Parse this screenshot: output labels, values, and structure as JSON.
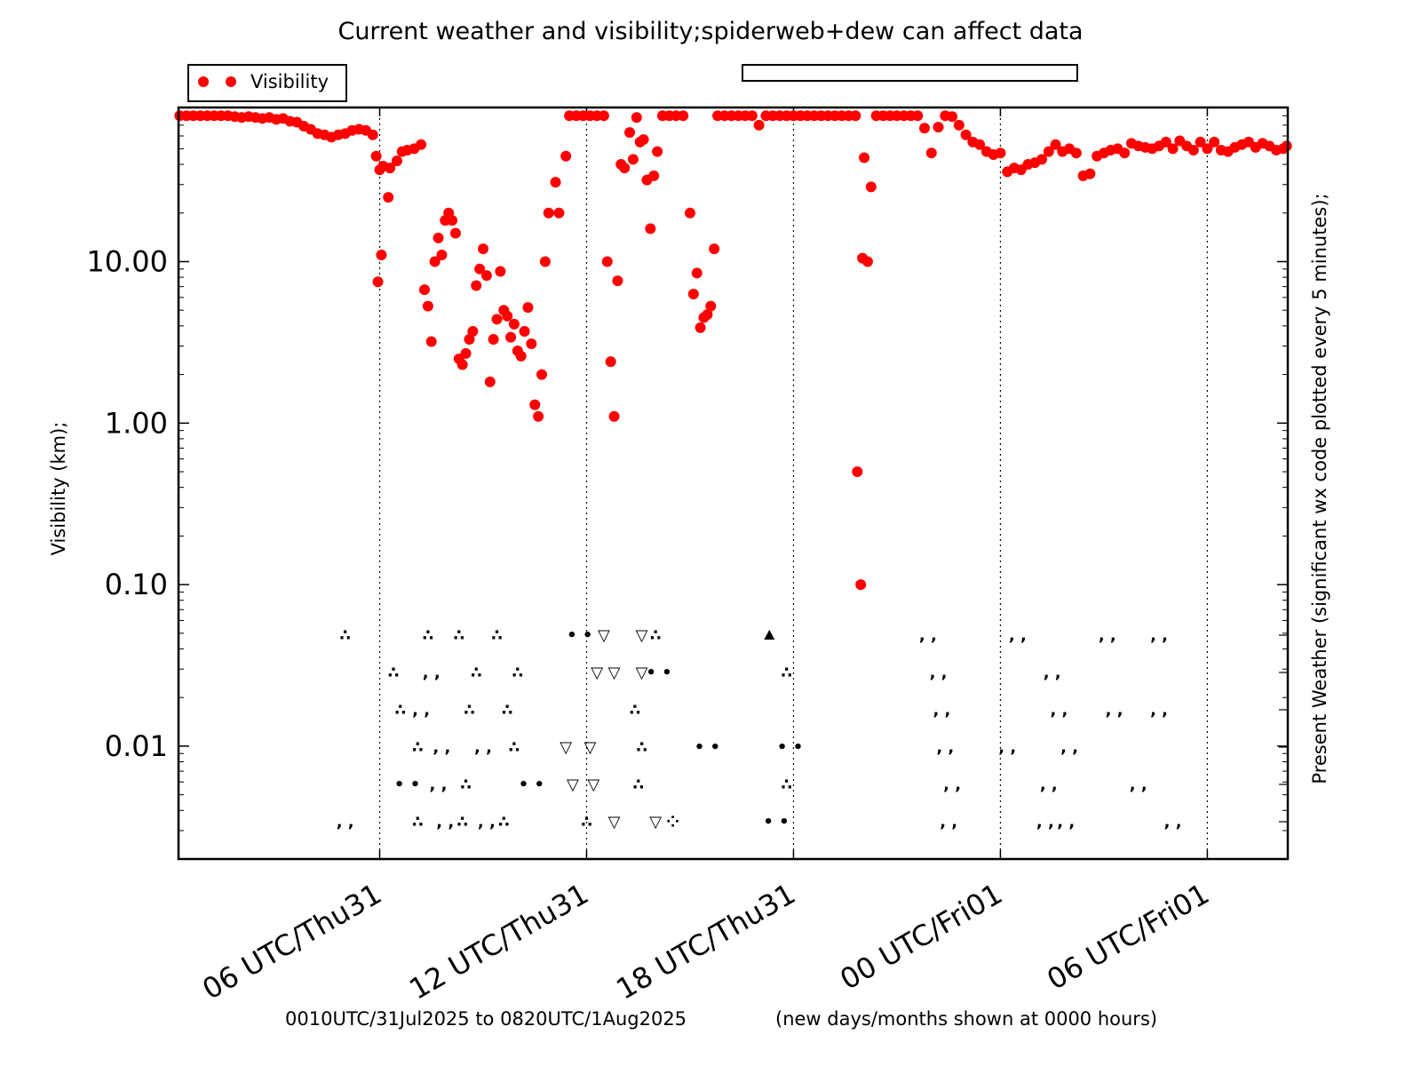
{
  "chart_data": {
    "type": "scatter",
    "title": "Current weather and visibility;spiderweb+dew can affect data",
    "ylabel": "Visibility  (km);",
    "ylabel_right": "Present Weather  (significant wx code plotted every 5 minutes);",
    "footer_left": "0010UTC/31Jul2025 to 0820UTC/1Aug2025",
    "footer_right": "(new days/months shown at 0000 hours)",
    "y_scale": "log",
    "ylim": [
      0.002,
      90
    ],
    "xlim": [
      0.1667,
      32.333
    ],
    "y_ticks": [
      {
        "value": 0.01,
        "label": "0.01"
      },
      {
        "value": 0.1,
        "label": "0.10"
      },
      {
        "value": 1,
        "label": "1.00"
      },
      {
        "value": 10,
        "label": "10.00"
      }
    ],
    "x_ticks": [
      {
        "hour": 6,
        "label": "06 UTC/Thu31"
      },
      {
        "hour": 12,
        "label": "12 UTC/Thu31"
      },
      {
        "hour": 18,
        "label": "18 UTC/Thu31"
      },
      {
        "hour": 24,
        "label": "00 UTC/Fri01"
      },
      {
        "hour": 30,
        "label": "06 UTC/Fri01"
      }
    ],
    "legend": {
      "placement": "top-left",
      "entries": [
        {
          "name": "Visibility",
          "color": "#ff0000"
        }
      ]
    },
    "grid": "vertical dotted at major x ticks",
    "colors": {
      "visibility": "#ff0000",
      "weather": "#000000"
    },
    "series": [
      {
        "name": "Visibility",
        "points": [
          [
            0.2,
            80
          ],
          [
            0.4,
            80
          ],
          [
            0.6,
            80
          ],
          [
            0.8,
            80
          ],
          [
            1.0,
            80
          ],
          [
            1.2,
            80
          ],
          [
            1.4,
            80
          ],
          [
            1.6,
            80
          ],
          [
            1.8,
            79
          ],
          [
            2.0,
            78
          ],
          [
            2.2,
            79
          ],
          [
            2.4,
            78
          ],
          [
            2.6,
            77
          ],
          [
            2.8,
            78
          ],
          [
            3.0,
            76
          ],
          [
            3.2,
            77
          ],
          [
            3.4,
            74
          ],
          [
            3.6,
            73
          ],
          [
            3.8,
            69
          ],
          [
            4.0,
            66
          ],
          [
            4.2,
            62
          ],
          [
            4.4,
            61
          ],
          [
            4.6,
            59
          ],
          [
            4.8,
            61
          ],
          [
            5.0,
            62
          ],
          [
            5.2,
            65
          ],
          [
            5.4,
            66
          ],
          [
            5.6,
            65
          ],
          [
            5.8,
            61
          ],
          [
            5.9,
            45
          ],
          [
            6.0,
            37
          ],
          [
            6.1,
            39
          ],
          [
            6.3,
            38
          ],
          [
            6.5,
            42
          ],
          [
            6.65,
            48
          ],
          [
            6.8,
            49
          ],
          [
            7.0,
            50
          ],
          [
            7.2,
            53
          ],
          [
            5.95,
            7.5
          ],
          [
            6.05,
            11
          ],
          [
            6.25,
            25
          ],
          [
            7.3,
            6.7
          ],
          [
            7.4,
            5.3
          ],
          [
            7.5,
            3.2
          ],
          [
            7.6,
            10
          ],
          [
            7.7,
            14
          ],
          [
            7.8,
            11
          ],
          [
            7.9,
            18
          ],
          [
            8.0,
            20
          ],
          [
            8.1,
            18
          ],
          [
            8.2,
            15
          ],
          [
            8.3,
            2.5
          ],
          [
            8.4,
            2.3
          ],
          [
            8.5,
            2.7
          ],
          [
            8.6,
            3.3
          ],
          [
            8.7,
            3.7
          ],
          [
            8.8,
            7.1
          ],
          [
            8.9,
            9
          ],
          [
            9.0,
            12
          ],
          [
            9.1,
            8.2
          ],
          [
            9.2,
            1.8
          ],
          [
            9.3,
            3.3
          ],
          [
            9.4,
            4.4
          ],
          [
            9.5,
            8.7
          ],
          [
            9.6,
            5
          ],
          [
            9.7,
            4.6
          ],
          [
            9.8,
            3.4
          ],
          [
            9.9,
            4.1
          ],
          [
            10.0,
            2.8
          ],
          [
            10.1,
            2.6
          ],
          [
            10.2,
            3.7
          ],
          [
            10.3,
            5.2
          ],
          [
            10.4,
            3.1
          ],
          [
            10.5,
            1.3
          ],
          [
            10.6,
            1.1
          ],
          [
            10.7,
            2
          ],
          [
            10.8,
            10
          ],
          [
            10.9,
            20
          ],
          [
            11.1,
            31
          ],
          [
            11.2,
            20
          ],
          [
            11.4,
            45
          ],
          [
            11.5,
            80
          ],
          [
            11.7,
            80
          ],
          [
            11.9,
            80
          ],
          [
            12.1,
            80
          ],
          [
            12.3,
            80
          ],
          [
            12.5,
            80
          ],
          [
            12.6,
            10
          ],
          [
            12.7,
            2.4
          ],
          [
            12.8,
            1.1
          ],
          [
            12.9,
            7.6
          ],
          [
            13.0,
            40
          ],
          [
            13.1,
            38
          ],
          [
            13.25,
            63
          ],
          [
            13.35,
            43
          ],
          [
            13.45,
            78
          ],
          [
            13.55,
            55
          ],
          [
            13.65,
            57
          ],
          [
            13.75,
            32
          ],
          [
            13.85,
            16
          ],
          [
            13.95,
            34
          ],
          [
            14.05,
            48
          ],
          [
            14.2,
            80
          ],
          [
            14.4,
            80
          ],
          [
            14.6,
            80
          ],
          [
            14.8,
            80
          ],
          [
            15.0,
            20
          ],
          [
            15.1,
            6.3
          ],
          [
            15.2,
            8.5
          ],
          [
            15.3,
            3.9
          ],
          [
            15.4,
            4.5
          ],
          [
            15.5,
            4.7
          ],
          [
            15.6,
            5.3
          ],
          [
            15.7,
            12
          ],
          [
            15.8,
            80
          ],
          [
            16.0,
            80
          ],
          [
            16.2,
            80
          ],
          [
            16.4,
            80
          ],
          [
            16.6,
            80
          ],
          [
            16.8,
            80
          ],
          [
            17.0,
            70
          ],
          [
            17.2,
            80
          ],
          [
            17.4,
            80
          ],
          [
            17.6,
            80
          ],
          [
            17.8,
            80
          ],
          [
            18.0,
            80
          ],
          [
            18.2,
            80
          ],
          [
            18.4,
            80
          ],
          [
            18.6,
            80
          ],
          [
            18.8,
            80
          ],
          [
            19.0,
            80
          ],
          [
            19.2,
            80
          ],
          [
            19.4,
            80
          ],
          [
            19.6,
            80
          ],
          [
            19.8,
            80
          ],
          [
            19.85,
            0.5
          ],
          [
            19.95,
            0.1
          ],
          [
            20.0,
            10.5
          ],
          [
            20.05,
            44
          ],
          [
            20.15,
            10
          ],
          [
            20.25,
            29
          ],
          [
            20.4,
            80
          ],
          [
            20.6,
            80
          ],
          [
            20.8,
            80
          ],
          [
            21.0,
            80
          ],
          [
            21.2,
            80
          ],
          [
            21.4,
            80
          ],
          [
            21.6,
            80
          ],
          [
            21.8,
            67
          ],
          [
            22.0,
            47
          ],
          [
            22.2,
            68
          ],
          [
            22.4,
            80
          ],
          [
            22.6,
            79
          ],
          [
            22.8,
            70
          ],
          [
            23.0,
            61
          ],
          [
            23.2,
            55
          ],
          [
            23.4,
            53
          ],
          [
            23.6,
            48
          ],
          [
            23.8,
            46
          ],
          [
            24.0,
            47
          ],
          [
            24.2,
            36
          ],
          [
            24.4,
            38
          ],
          [
            24.6,
            37
          ],
          [
            24.8,
            40
          ],
          [
            25.0,
            41
          ],
          [
            25.2,
            43
          ],
          [
            25.4,
            48
          ],
          [
            25.6,
            53
          ],
          [
            25.8,
            48
          ],
          [
            26.0,
            50
          ],
          [
            26.2,
            47
          ],
          [
            26.4,
            34
          ],
          [
            26.6,
            35
          ],
          [
            26.8,
            45
          ],
          [
            27.0,
            47
          ],
          [
            27.2,
            49
          ],
          [
            27.4,
            50
          ],
          [
            27.6,
            47
          ],
          [
            27.8,
            54
          ],
          [
            28.0,
            52
          ],
          [
            28.2,
            51
          ],
          [
            28.4,
            50
          ],
          [
            28.6,
            52
          ],
          [
            28.8,
            55
          ],
          [
            29.0,
            50
          ],
          [
            29.2,
            56
          ],
          [
            29.4,
            52
          ],
          [
            29.6,
            49
          ],
          [
            29.8,
            55
          ],
          [
            30.0,
            50
          ],
          [
            30.2,
            55
          ],
          [
            30.4,
            49
          ],
          [
            30.6,
            48
          ],
          [
            30.8,
            51
          ],
          [
            31.0,
            53
          ],
          [
            31.2,
            55
          ],
          [
            31.4,
            51
          ],
          [
            31.6,
            54
          ],
          [
            31.8,
            52
          ],
          [
            32.0,
            49
          ],
          [
            32.2,
            50
          ],
          [
            32.3,
            52
          ]
        ]
      }
    ],
    "present_weather_rows": [
      {
        "rank": 1,
        "items": [
          {
            "hour": 5.0,
            "sym": "comma2"
          },
          {
            "hour": 7.1,
            "sym": "dot3"
          },
          {
            "hour": 7.9,
            "sym": "comma2"
          },
          {
            "hour": 8.4,
            "sym": "dot3"
          },
          {
            "hour": 9.1,
            "sym": "comma2"
          },
          {
            "hour": 9.6,
            "sym": "dot3"
          },
          {
            "hour": 12.0,
            "sym": "dot3"
          },
          {
            "hour": 12.8,
            "sym": "shower"
          },
          {
            "hour": 14.0,
            "sym": "shower"
          },
          {
            "hour": 14.5,
            "sym": "dot4"
          },
          {
            "hour": 17.5,
            "sym": "dot2"
          },
          {
            "hour": 22.5,
            "sym": "comma2"
          },
          {
            "hour": 25.3,
            "sym": "comma2"
          },
          {
            "hour": 25.9,
            "sym": "comma2"
          },
          {
            "hour": 29.0,
            "sym": "comma2"
          }
        ]
      },
      {
        "rank": 2,
        "items": [
          {
            "hour": 6.8,
            "sym": "dot2"
          },
          {
            "hour": 7.7,
            "sym": "comma2"
          },
          {
            "hour": 8.5,
            "sym": "dot3"
          },
          {
            "hour": 10.4,
            "sym": "dot2"
          },
          {
            "hour": 11.6,
            "sym": "shower"
          },
          {
            "hour": 12.2,
            "sym": "shower"
          },
          {
            "hour": 13.5,
            "sym": "dot3"
          },
          {
            "hour": 17.8,
            "sym": "dot3"
          },
          {
            "hour": 22.6,
            "sym": "comma2"
          },
          {
            "hour": 25.4,
            "sym": "comma2"
          },
          {
            "hour": 28.0,
            "sym": "comma2"
          }
        ]
      },
      {
        "rank": 3,
        "items": [
          {
            "hour": 7.1,
            "sym": "dot3"
          },
          {
            "hour": 7.8,
            "sym": "comma2"
          },
          {
            "hour": 9.0,
            "sym": "comma2"
          },
          {
            "hour": 9.9,
            "sym": "dot3"
          },
          {
            "hour": 11.4,
            "sym": "shower"
          },
          {
            "hour": 12.1,
            "sym": "shower"
          },
          {
            "hour": 13.6,
            "sym": "dot3"
          },
          {
            "hour": 15.5,
            "sym": "dot2"
          },
          {
            "hour": 17.9,
            "sym": "dot2"
          },
          {
            "hour": 22.4,
            "sym": "comma2"
          },
          {
            "hour": 24.2,
            "sym": "comma2"
          },
          {
            "hour": 26.0,
            "sym": "comma2"
          }
        ]
      },
      {
        "rank": 4,
        "items": [
          {
            "hour": 6.6,
            "sym": "dot3"
          },
          {
            "hour": 7.2,
            "sym": "comma2"
          },
          {
            "hour": 8.6,
            "sym": "dot3"
          },
          {
            "hour": 9.7,
            "sym": "dot3"
          },
          {
            "hour": 13.4,
            "sym": "dot3"
          },
          {
            "hour": 22.3,
            "sym": "comma2"
          },
          {
            "hour": 25.7,
            "sym": "comma2"
          },
          {
            "hour": 27.3,
            "sym": "comma2"
          },
          {
            "hour": 28.6,
            "sym": "comma2"
          }
        ]
      },
      {
        "rank": 5,
        "items": [
          {
            "hour": 6.4,
            "sym": "dot3"
          },
          {
            "hour": 7.5,
            "sym": "comma2"
          },
          {
            "hour": 8.8,
            "sym": "dot3"
          },
          {
            "hour": 10.0,
            "sym": "dot3"
          },
          {
            "hour": 12.3,
            "sym": "shower"
          },
          {
            "hour": 12.8,
            "sym": "shower"
          },
          {
            "hour": 13.6,
            "sym": "shower"
          },
          {
            "hour": 14.1,
            "sym": "dot2"
          },
          {
            "hour": 17.8,
            "sym": "dot3"
          },
          {
            "hour": 22.2,
            "sym": "comma2"
          },
          {
            "hour": 25.5,
            "sym": "comma2"
          }
        ]
      },
      {
        "rank": 6,
        "items": [
          {
            "hour": 5.0,
            "sym": "dot3"
          },
          {
            "hour": 7.4,
            "sym": "dot3"
          },
          {
            "hour": 8.3,
            "sym": "dot3"
          },
          {
            "hour": 9.4,
            "sym": "dot3"
          },
          {
            "hour": 11.8,
            "sym": "dot2"
          },
          {
            "hour": 12.5,
            "sym": "shower"
          },
          {
            "hour": 13.6,
            "sym": "shower"
          },
          {
            "hour": 14.0,
            "sym": "dot3"
          },
          {
            "hour": 17.3,
            "sym": "triangle"
          },
          {
            "hour": 21.9,
            "sym": "comma2"
          },
          {
            "hour": 24.5,
            "sym": "comma2"
          },
          {
            "hour": 27.1,
            "sym": "comma2"
          },
          {
            "hour": 28.6,
            "sym": "comma2"
          }
        ]
      }
    ],
    "wx_symbols": {
      "comma2": ", ,",
      "dot2": "• •",
      "dot3": "∴",
      "dot4": "⁘",
      "shower": "▽",
      "triangle": "▲"
    }
  }
}
